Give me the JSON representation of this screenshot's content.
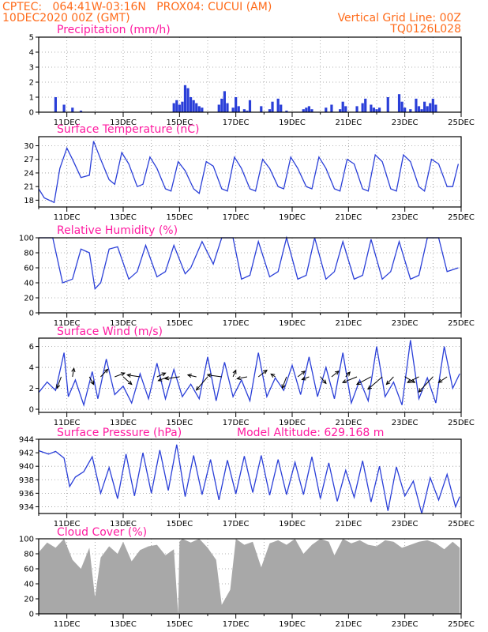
{
  "header": {
    "line1": "CPTEC:   064:41W-03:16N   PROX04: CUCUI (AM)",
    "line2": "10DEC2020 00Z (GMT)",
    "grid_note": "Vertical Grid Line: 00Z",
    "code": "TQ0126L028"
  },
  "colors": {
    "header": "#ff6b1a",
    "title": "#ff1aa0",
    "line": "#2a3fd8",
    "cloud": "#a8a8a8",
    "arrow": "#000000"
  },
  "chart_data": [
    {
      "type": "bar",
      "title": "Precipitation (mm/h)",
      "ylim": [
        0,
        5
      ],
      "yticks": [
        "0",
        "1",
        "2",
        "3",
        "4",
        "5"
      ],
      "xticks": [
        "11DEC",
        "13DEC",
        "15DEC",
        "17DEC",
        "19DEC",
        "21DEC",
        "23DEC",
        "25DEC"
      ],
      "grid": true,
      "x": [
        0.6,
        0.9,
        1.2,
        1.5,
        4.8,
        4.9,
        5.0,
        5.1,
        5.2,
        5.3,
        5.4,
        5.5,
        5.6,
        5.7,
        5.8,
        6.4,
        6.5,
        6.6,
        6.7,
        6.9,
        7.0,
        7.1,
        7.3,
        7.4,
        7.5,
        7.9,
        8.2,
        8.3,
        8.5,
        8.6,
        8.8,
        9.4,
        9.5,
        9.6,
        9.7,
        10.2,
        10.4,
        10.7,
        10.8,
        10.9,
        11.3,
        11.5,
        11.6,
        11.8,
        11.9,
        12.0,
        12.1,
        12.4,
        12.8,
        12.9,
        13.0,
        13.2,
        13.4,
        13.5,
        13.6,
        13.7,
        13.8,
        13.9,
        14.0,
        14.1
      ],
      "values": [
        1.0,
        0.5,
        0.3,
        0.1,
        0.6,
        0.8,
        0.5,
        0.7,
        1.8,
        1.6,
        1.0,
        0.8,
        0.6,
        0.4,
        0.3,
        0.5,
        0.9,
        1.4,
        0.6,
        0.3,
        1.0,
        0.4,
        0.2,
        0.1,
        0.8,
        0.4,
        0.2,
        0.7,
        0.9,
        0.5,
        0.1,
        0.2,
        0.3,
        0.4,
        0.2,
        0.3,
        0.5,
        0.2,
        0.7,
        0.4,
        0.4,
        0.6,
        0.9,
        0.5,
        0.3,
        0.2,
        0.3,
        1.0,
        1.2,
        0.7,
        0.3,
        0.2,
        0.9,
        0.4,
        0.2,
        0.7,
        0.4,
        0.6,
        0.9,
        0.5
      ]
    },
    {
      "type": "line",
      "title": "Surface Temperature (nC)",
      "ylim": [
        16.5,
        32
      ],
      "yticks": [
        "18",
        "21",
        "24",
        "27",
        "30"
      ],
      "xticks": [
        "11DEC",
        "13DEC",
        "15DEC",
        "17DEC",
        "19DEC",
        "21DEC",
        "23DEC",
        "25DEC"
      ],
      "grid": true,
      "x": [
        0,
        0.2,
        0.55,
        0.75,
        1.0,
        1.2,
        1.5,
        1.8,
        1.95,
        2.2,
        2.5,
        2.7,
        2.95,
        3.2,
        3.5,
        3.7,
        3.95,
        4.2,
        4.5,
        4.7,
        4.95,
        5.2,
        5.5,
        5.7,
        5.95,
        6.2,
        6.5,
        6.7,
        6.95,
        7.2,
        7.5,
        7.7,
        7.95,
        8.2,
        8.5,
        8.7,
        8.95,
        9.2,
        9.5,
        9.7,
        9.95,
        10.2,
        10.5,
        10.7,
        10.95,
        11.2,
        11.5,
        11.7,
        11.95,
        12.2,
        12.5,
        12.7,
        12.95,
        13.2,
        13.5,
        13.7,
        13.95,
        14.2,
        14.5,
        14.7,
        14.9
      ],
      "values": [
        20.5,
        18.5,
        17.5,
        25,
        29.5,
        27,
        23,
        23.5,
        31,
        27,
        22.5,
        21.5,
        28.5,
        26,
        21,
        21.5,
        27.5,
        25,
        20.5,
        20,
        26.5,
        24.5,
        20.5,
        19.5,
        26.5,
        25.5,
        20.5,
        20,
        27.5,
        25,
        20.5,
        20,
        27,
        25,
        21,
        20.5,
        27.5,
        25,
        21,
        20.5,
        27.5,
        25,
        20.5,
        20,
        27,
        26,
        20.5,
        20,
        28,
        26.5,
        20.5,
        20,
        28,
        26.5,
        21,
        20,
        27,
        26,
        21,
        21,
        26
      ]
    },
    {
      "type": "line",
      "title": "Relative Humidity (%)",
      "ylim": [
        0,
        100
      ],
      "yticks": [
        "0",
        "20",
        "40",
        "60",
        "80",
        "100"
      ],
      "xticks": [
        "11DEC",
        "13DEC",
        "15DEC",
        "17DEC",
        "19DEC",
        "21DEC",
        "23DEC",
        "25DEC"
      ],
      "grid": true,
      "x": [
        0,
        0.5,
        0.85,
        1.2,
        1.5,
        1.8,
        2.0,
        2.2,
        2.5,
        2.8,
        3.2,
        3.5,
        3.8,
        4.2,
        4.5,
        4.8,
        5.2,
        5.4,
        5.8,
        6.2,
        6.5,
        6.9,
        7.2,
        7.5,
        7.8,
        8.2,
        8.5,
        8.8,
        9.2,
        9.5,
        9.8,
        10.2,
        10.5,
        10.8,
        11.2,
        11.5,
        11.8,
        12.2,
        12.5,
        12.8,
        13.2,
        13.5,
        13.8,
        14.2,
        14.5,
        14.9
      ],
      "values": [
        100,
        100,
        40,
        45,
        85,
        80,
        32,
        40,
        85,
        88,
        45,
        55,
        90,
        48,
        55,
        90,
        52,
        60,
        95,
        65,
        100,
        100,
        45,
        50,
        95,
        48,
        55,
        100,
        45,
        50,
        100,
        45,
        55,
        95,
        45,
        50,
        98,
        45,
        55,
        95,
        45,
        50,
        100,
        100,
        55,
        60
      ]
    },
    {
      "type": "line",
      "title": "Surface Wind (m/s)",
      "ylim": [
        -0.3,
        6.8
      ],
      "yticks": [
        "0",
        "2",
        "4",
        "6"
      ],
      "xticks": [
        "11DEC",
        "13DEC",
        "15DEC",
        "17DEC",
        "19DEC",
        "21DEC",
        "23DEC",
        "25DEC"
      ],
      "grid": true,
      "x": [
        0,
        0.3,
        0.6,
        0.9,
        1.05,
        1.3,
        1.6,
        1.9,
        2.1,
        2.4,
        2.7,
        3.0,
        3.3,
        3.6,
        3.9,
        4.2,
        4.5,
        4.8,
        5.1,
        5.4,
        5.7,
        6.0,
        6.3,
        6.6,
        6.9,
        7.2,
        7.5,
        7.8,
        8.1,
        8.4,
        8.7,
        9.0,
        9.3,
        9.6,
        9.9,
        10.2,
        10.5,
        10.8,
        11.1,
        11.4,
        11.7,
        12.0,
        12.3,
        12.6,
        12.9,
        13.2,
        13.5,
        13.8,
        14.1,
        14.4,
        14.7,
        14.95
      ],
      "values": [
        1.6,
        2.6,
        1.8,
        5.4,
        1.2,
        2.8,
        0.4,
        3.6,
        1.0,
        4.8,
        1.4,
        2.2,
        0.6,
        3.4,
        1.0,
        4.4,
        1.0,
        3.8,
        1.2,
        2.4,
        1.0,
        5.0,
        0.8,
        4.5,
        1.2,
        2.8,
        0.8,
        5.4,
        1.2,
        3.0,
        1.8,
        4.2,
        1.4,
        5.0,
        1.2,
        4.0,
        1.0,
        5.4,
        0.6,
        2.8,
        0.8,
        6.0,
        1.2,
        2.6,
        0.4,
        6.6,
        1.0,
        3.0,
        0.6,
        6.0,
        2.0,
        3.4
      ],
      "vectors": [
        {
          "x": 0.8,
          "u": -0.3,
          "v": -1.2
        },
        {
          "x": 1.2,
          "u": 0.1,
          "v": 0.9
        },
        {
          "x": 1.8,
          "u": 0.3,
          "v": -0.8
        },
        {
          "x": 2.2,
          "u": 0.5,
          "v": 0.8
        },
        {
          "x": 2.7,
          "u": 0.7,
          "v": 0.4
        },
        {
          "x": 3.0,
          "u": 0.6,
          "v": -0.8
        },
        {
          "x": 3.6,
          "u": -0.9,
          "v": 0.2
        },
        {
          "x": 4.2,
          "u": 0.6,
          "v": 0.4
        },
        {
          "x": 4.6,
          "u": -0.7,
          "v": -0.4
        },
        {
          "x": 5.0,
          "u": -1.0,
          "v": -0.2
        },
        {
          "x": 5.6,
          "u": -0.6,
          "v": 0.2
        },
        {
          "x": 6.0,
          "u": -0.8,
          "v": -1.4
        },
        {
          "x": 6.5,
          "u": -1.0,
          "v": 0.2
        },
        {
          "x": 6.9,
          "u": 0.2,
          "v": 0.7
        },
        {
          "x": 7.4,
          "u": -0.7,
          "v": -0.2
        },
        {
          "x": 7.8,
          "u": 0.6,
          "v": 0.7
        },
        {
          "x": 8.4,
          "u": -0.3,
          "v": 0.3
        },
        {
          "x": 8.8,
          "u": -0.3,
          "v": -1.2
        },
        {
          "x": 9.2,
          "u": 0.5,
          "v": 0.6
        },
        {
          "x": 9.6,
          "u": -0.5,
          "v": -0.3
        },
        {
          "x": 10.0,
          "u": 0.4,
          "v": -0.7
        },
        {
          "x": 10.4,
          "u": 0.5,
          "v": 0.6
        },
        {
          "x": 10.9,
          "u": 0.3,
          "v": 0.5
        },
        {
          "x": 11.3,
          "u": -1.0,
          "v": -0.6
        },
        {
          "x": 11.8,
          "u": -1.0,
          "v": -0.8
        },
        {
          "x": 12.2,
          "u": -1.0,
          "v": -1.3
        },
        {
          "x": 12.6,
          "u": -0.5,
          "v": -0.8
        },
        {
          "x": 13.0,
          "u": 0.7,
          "v": -0.6
        },
        {
          "x": 13.5,
          "u": -0.8,
          "v": -0.6
        },
        {
          "x": 14.0,
          "u": -1.0,
          "v": -1.6
        },
        {
          "x": 14.5,
          "u": -0.6,
          "v": -0.6
        }
      ]
    },
    {
      "type": "line",
      "title": "Surface Pressure (hPa)",
      "subtitle": "Model Altitude: 629.168 m",
      "ylim": [
        933,
        944
      ],
      "yticks": [
        "934",
        "936",
        "938",
        "940",
        "942",
        "944"
      ],
      "xticks": [
        "11DEC",
        "13DEC",
        "15DEC",
        "17DEC",
        "19DEC",
        "21DEC",
        "23DEC",
        "25DEC"
      ],
      "grid": true,
      "x": [
        0,
        0.35,
        0.6,
        0.9,
        1.1,
        1.3,
        1.6,
        1.9,
        2.2,
        2.5,
        2.8,
        3.1,
        3.4,
        3.7,
        4.0,
        4.3,
        4.6,
        4.9,
        5.2,
        5.5,
        5.8,
        6.1,
        6.4,
        6.7,
        7.0,
        7.3,
        7.6,
        7.9,
        8.2,
        8.5,
        8.8,
        9.1,
        9.4,
        9.7,
        10.0,
        10.3,
        10.6,
        10.9,
        11.2,
        11.5,
        11.8,
        12.1,
        12.4,
        12.7,
        13.0,
        13.3,
        13.6,
        13.9,
        14.2,
        14.5,
        14.8,
        14.95
      ],
      "values": [
        942.3,
        941.8,
        942.2,
        941.2,
        937.0,
        938.4,
        939.2,
        941.4,
        936.0,
        939.8,
        935.2,
        941.8,
        935.6,
        942.0,
        936.0,
        942.4,
        936.4,
        943.2,
        935.5,
        941.6,
        935.8,
        941.0,
        935.0,
        940.9,
        935.9,
        941.5,
        936.1,
        941.6,
        935.7,
        941.0,
        935.8,
        940.6,
        935.8,
        941.4,
        935.2,
        940.5,
        934.8,
        939.4,
        935.4,
        940.8,
        934.7,
        940.0,
        933.4,
        939.9,
        935.6,
        937.8,
        933.0,
        938.3,
        935.0,
        938.8,
        934.0,
        935.5
      ]
    },
    {
      "type": "area",
      "title": "Cloud Cover (%)",
      "ylim": [
        0,
        100
      ],
      "yticks": [
        "0",
        "20",
        "40",
        "60",
        "80",
        "100"
      ],
      "xticks": [
        "11DEC",
        "13DEC",
        "15DEC",
        "17DEC",
        "19DEC",
        "21DEC",
        "23DEC",
        "25DEC"
      ],
      "grid": true,
      "x": [
        0,
        0.3,
        0.6,
        0.9,
        1.2,
        1.5,
        1.8,
        2.0,
        2.2,
        2.5,
        2.8,
        3.0,
        3.3,
        3.6,
        3.9,
        4.2,
        4.5,
        4.8,
        4.95,
        5.0,
        5.1,
        5.4,
        5.7,
        6.0,
        6.3,
        6.5,
        6.8,
        7.0,
        7.3,
        7.6,
        7.9,
        8.2,
        8.5,
        8.8,
        9.1,
        9.4,
        9.7,
        10.0,
        10.3,
        10.5,
        10.8,
        11.1,
        11.4,
        11.7,
        12.0,
        12.3,
        12.6,
        12.9,
        13.2,
        13.5,
        13.8,
        14.1,
        14.4,
        14.7,
        14.95
      ],
      "values": [
        82,
        95,
        88,
        100,
        72,
        60,
        88,
        22,
        75,
        90,
        80,
        96,
        70,
        85,
        90,
        92,
        78,
        86,
        0,
        96,
        100,
        95,
        100,
        88,
        72,
        12,
        32,
        100,
        92,
        96,
        62,
        94,
        98,
        92,
        100,
        80,
        92,
        100,
        96,
        78,
        100,
        94,
        98,
        92,
        90,
        98,
        96,
        88,
        92,
        96,
        98,
        94,
        86,
        96,
        88
      ]
    }
  ]
}
